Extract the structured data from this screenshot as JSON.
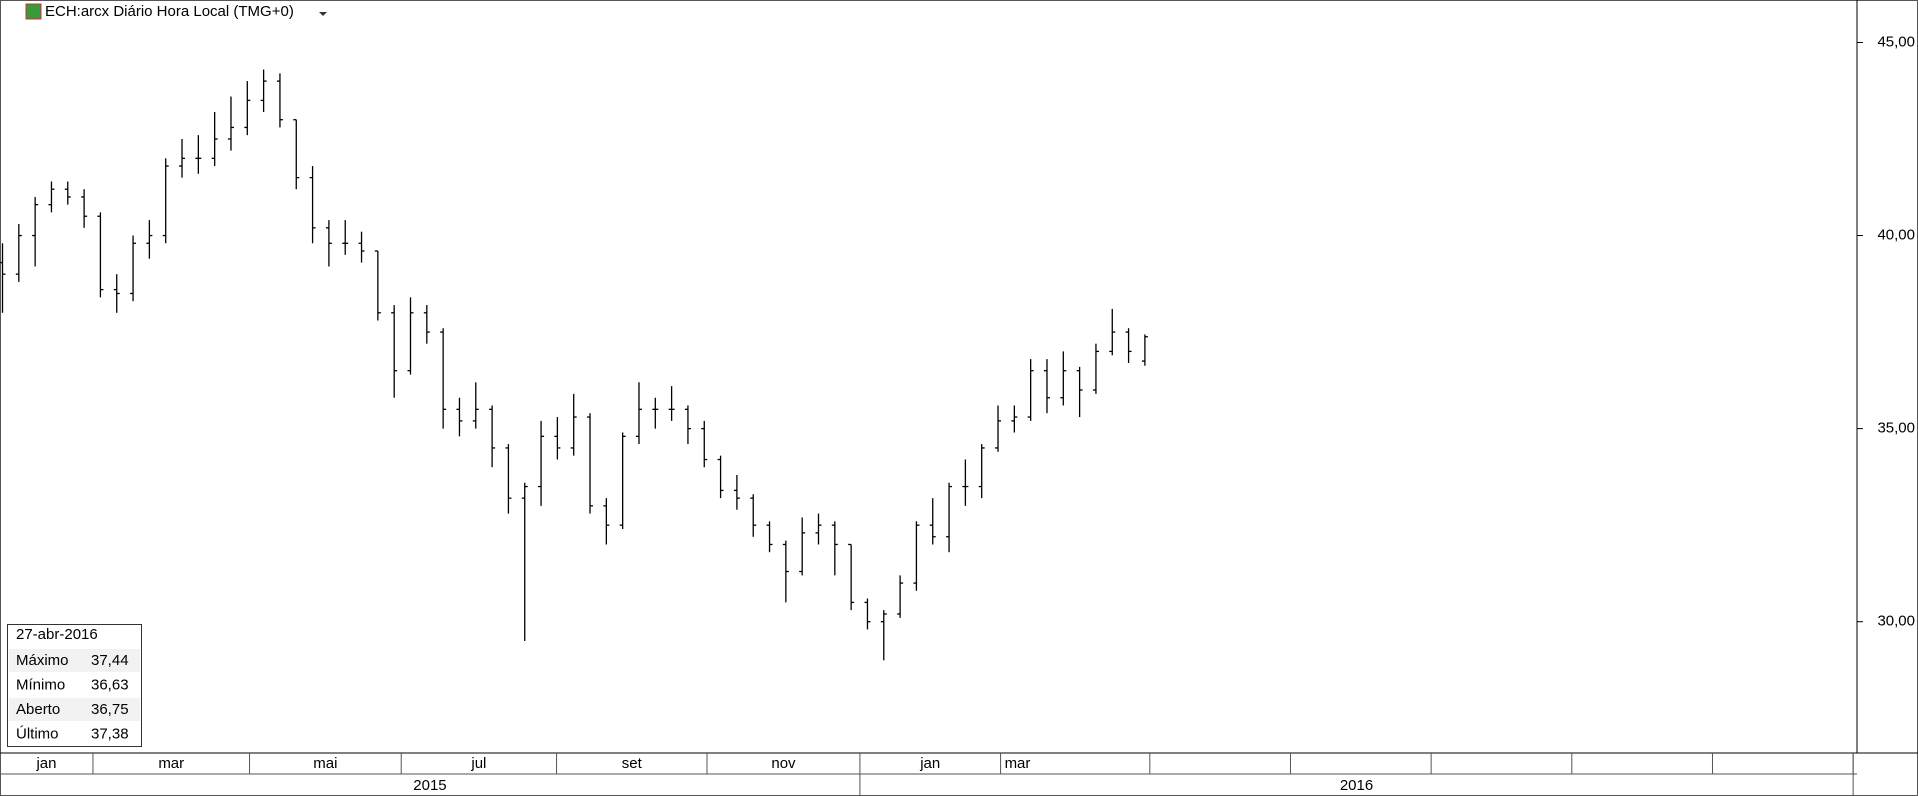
{
  "header": {
    "title": "ECH:arcx Diário Hora Local (TMG+0)"
  },
  "chart_data": {
    "type": "ohlc",
    "color": "#000000",
    "open": [
      39.3,
      39.0,
      40.0,
      40.8,
      41.2,
      41.0,
      40.5,
      38.6,
      38.5,
      39.8,
      40.0,
      41.8,
      42.0,
      42.0,
      42.5,
      42.8,
      43.5,
      44.0,
      43.0,
      41.5,
      40.2,
      39.8,
      39.8,
      39.6,
      38.0,
      36.5,
      38.0,
      37.5,
      35.5,
      35.2,
      35.5,
      34.5,
      33.2,
      33.5,
      34.8,
      34.5,
      35.3,
      33.0,
      32.5,
      34.8,
      35.5,
      35.5,
      35.5,
      35.0,
      34.2,
      33.4,
      33.2,
      32.5,
      32.0,
      31.3,
      32.3,
      32.5,
      32.0,
      30.5,
      30.0,
      30.2,
      31.0,
      32.5,
      32.2,
      33.5,
      33.5,
      34.5,
      35.2,
      35.3,
      36.5,
      35.8,
      36.5,
      36.0,
      37.0,
      37.5,
      36.75
    ],
    "high": [
      39.8,
      40.3,
      41.0,
      41.4,
      41.4,
      41.2,
      40.6,
      39.0,
      40.0,
      40.4,
      42.0,
      42.5,
      42.6,
      43.2,
      43.6,
      44.0,
      44.3,
      44.2,
      43.0,
      41.8,
      40.4,
      40.4,
      40.1,
      39.6,
      38.2,
      38.4,
      38.2,
      37.6,
      35.8,
      36.2,
      35.6,
      34.6,
      33.6,
      35.2,
      35.3,
      35.9,
      35.4,
      33.2,
      34.9,
      36.2,
      35.8,
      36.1,
      35.6,
      35.2,
      34.3,
      33.8,
      33.3,
      32.6,
      32.1,
      32.7,
      32.8,
      32.6,
      32.0,
      30.6,
      30.3,
      31.2,
      32.6,
      33.2,
      33.6,
      34.2,
      34.6,
      35.6,
      35.6,
      36.8,
      36.8,
      37.0,
      36.6,
      37.2,
      38.1,
      37.6,
      37.44
    ],
    "low": [
      38.0,
      38.8,
      39.2,
      40.6,
      40.8,
      40.2,
      38.4,
      38.0,
      38.3,
      39.4,
      39.8,
      41.5,
      41.6,
      41.8,
      42.2,
      42.6,
      43.2,
      42.8,
      41.2,
      39.8,
      39.2,
      39.5,
      39.3,
      37.8,
      35.8,
      36.4,
      37.2,
      35.0,
      34.8,
      35.0,
      34.0,
      32.8,
      29.5,
      33.0,
      34.2,
      34.3,
      32.8,
      32.0,
      32.4,
      34.6,
      35.0,
      35.2,
      34.6,
      34.0,
      33.2,
      32.9,
      32.2,
      31.8,
      30.5,
      31.2,
      32.0,
      31.2,
      30.3,
      29.8,
      29.0,
      30.1,
      30.8,
      32.0,
      31.8,
      33.0,
      33.2,
      34.4,
      34.9,
      35.2,
      35.4,
      35.6,
      35.3,
      35.9,
      36.9,
      36.7,
      36.63
    ],
    "close": [
      39.0,
      40.0,
      40.8,
      41.2,
      41.0,
      40.5,
      38.6,
      38.5,
      39.8,
      40.0,
      41.8,
      42.0,
      42.0,
      42.5,
      42.8,
      43.5,
      44.0,
      43.0,
      41.5,
      40.2,
      39.8,
      39.8,
      39.6,
      38.0,
      36.5,
      38.0,
      37.5,
      35.5,
      35.2,
      35.5,
      34.5,
      33.2,
      33.5,
      34.8,
      34.5,
      35.3,
      33.0,
      32.5,
      34.8,
      35.5,
      35.5,
      35.5,
      35.0,
      34.2,
      33.4,
      33.2,
      32.5,
      32.0,
      31.3,
      32.3,
      32.5,
      32.0,
      30.5,
      30.0,
      30.2,
      31.0,
      32.5,
      32.2,
      33.5,
      33.5,
      34.5,
      35.2,
      35.3,
      36.5,
      35.8,
      36.5,
      36.0,
      37.0,
      37.5,
      37.0,
      37.38
    ],
    "ylim": [
      26.6,
      46.1
    ],
    "yticks": [
      {
        "value": 30,
        "label": "30,00"
      },
      {
        "value": 35,
        "label": "35,00"
      },
      {
        "value": 40,
        "label": "40,00"
      },
      {
        "value": 45,
        "label": "45,00"
      }
    ],
    "months": [
      "jan",
      "mar",
      "mai",
      "jul",
      "set",
      "nov",
      "jan",
      "mar"
    ],
    "years": [
      "2015",
      "2016"
    ]
  },
  "info_box": {
    "date": "27-abr-2016",
    "rows": [
      [
        "Máximo",
        "37,44"
      ],
      [
        "Mínimo",
        "36,63"
      ],
      [
        "Aberto",
        "36,75"
      ],
      [
        "Último",
        "37,38"
      ]
    ]
  }
}
